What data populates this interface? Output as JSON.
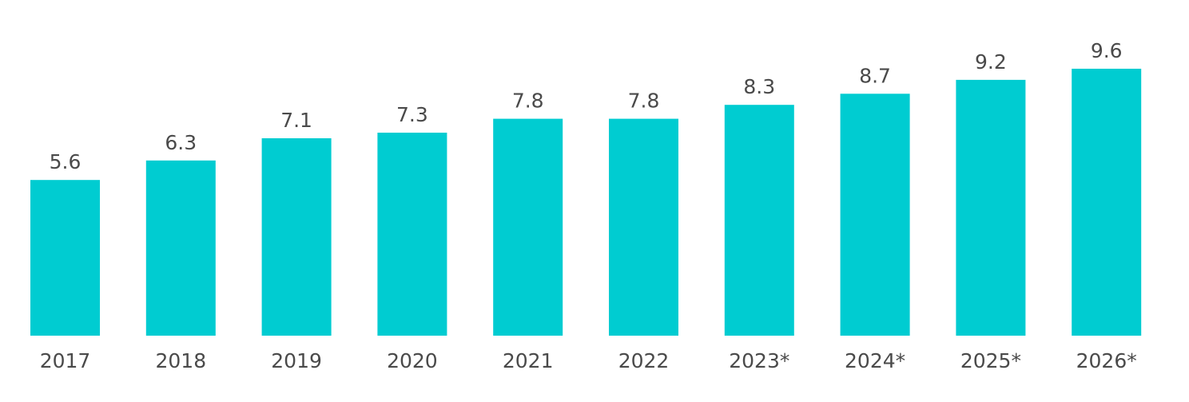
{
  "chart_data": {
    "type": "bar",
    "categories": [
      "2017",
      "2018",
      "2019",
      "2020",
      "2021",
      "2022",
      "2023*",
      "2024*",
      "2025*",
      "2026*"
    ],
    "values": [
      5.6,
      6.3,
      7.1,
      7.3,
      7.8,
      7.8,
      8.3,
      8.7,
      9.2,
      9.6
    ],
    "value_labels": [
      "5.6",
      "6.3",
      "7.1",
      "7.3",
      "7.8",
      "7.8",
      "8.3",
      "8.7",
      "9.2",
      "9.6"
    ],
    "ylim": [
      0,
      9.6
    ],
    "grid": false,
    "legend": "none",
    "bar_color": "#00CCD1",
    "text_color": "#4A4A4A"
  }
}
